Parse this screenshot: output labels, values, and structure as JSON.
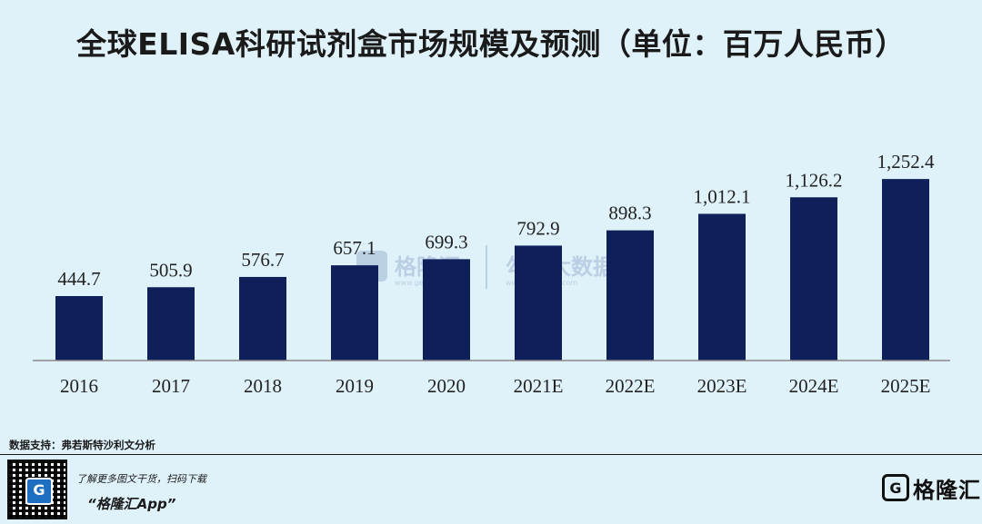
{
  "title": "全球ELISA科研试剂盒市场规模及预测（单位：百万人民币）",
  "source": "数据支持：弗若斯特沙利文分析",
  "promo": {
    "line1": "了解更多图文干货，扫码下载",
    "line2": "“格隆汇App”"
  },
  "brand": {
    "icon_letter": "G",
    "name": "格隆汇"
  },
  "watermark": {
    "brand": "格隆汇",
    "brand_url": "www.gelonghui.com",
    "data": "勾股大数据",
    "data_url": "www.gogudata.com"
  },
  "colors": {
    "bar": "#0e1f59",
    "background": "#dff2fa"
  },
  "chart_data": {
    "type": "bar",
    "title": "全球ELISA科研试剂盒市场规模及预测（单位：百万人民币）",
    "categories": [
      "2016",
      "2017",
      "2018",
      "2019",
      "2020",
      "2021E",
      "2022E",
      "2023E",
      "2024E",
      "2025E"
    ],
    "values": [
      444.7,
      505.9,
      576.7,
      657.1,
      699.3,
      792.9,
      898.3,
      1012.1,
      1126.2,
      1252.4
    ],
    "value_labels": [
      "444.7",
      "505.9",
      "576.7",
      "657.1",
      "699.3",
      "792.9",
      "898.3",
      "1,012.1",
      "1,126.2",
      "1,252.4"
    ],
    "xlabel": "",
    "ylabel": "",
    "ylim": [
      0,
      1400
    ],
    "grid": false,
    "legend": "none"
  }
}
